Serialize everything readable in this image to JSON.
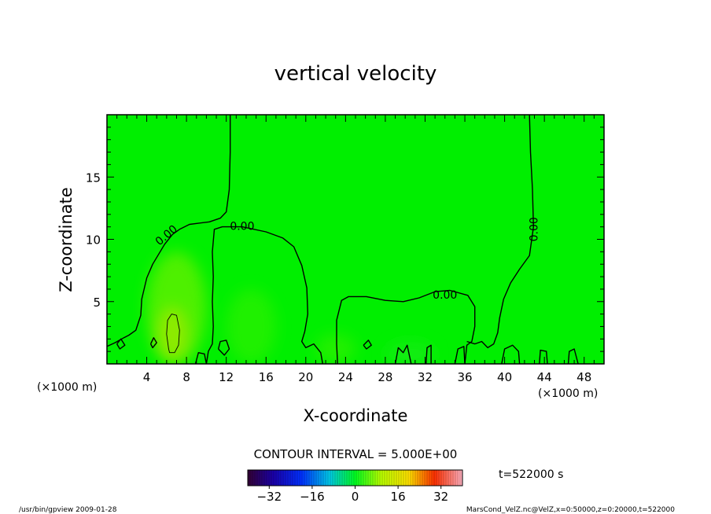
{
  "chart_data": {
    "type": "heatmap",
    "title": "vertical velocity",
    "xlabel": "X-coordinate",
    "ylabel": "Z-coordinate",
    "x_unit": "(×1000 m)",
    "y_unit": "(×1000 m)",
    "xlim": [
      0,
      50
    ],
    "ylim": [
      0,
      20
    ],
    "x_ticks": [
      4,
      8,
      12,
      16,
      20,
      24,
      28,
      32,
      36,
      40,
      44,
      48
    ],
    "y_ticks": [
      5,
      10,
      15
    ],
    "x_tick_labels": [
      "4",
      "8",
      "12",
      "16",
      "20",
      "24",
      "28",
      "32",
      "36",
      "40",
      "44",
      "48"
    ],
    "y_tick_labels": [
      "5",
      "10",
      "15"
    ],
    "contour_interval_text": "CONTOUR INTERVAL = 5.000E+00",
    "contour_label": "0.00",
    "colorbar": {
      "min": -40,
      "max": 40,
      "ticks": [
        -32,
        -16,
        0,
        16,
        32
      ],
      "tick_labels": [
        "−32",
        "−16",
        "0",
        "16",
        "32"
      ]
    },
    "time_text": "t=522000 s",
    "footer_left": "/usr/bin/gpview   2009-01-28",
    "footer_right": "MarsCond_VelZ.nc@VelZ,x=0:50000,z=0:20000,t=522000",
    "field_color": "#00ef00",
    "contours": [
      {
        "value": 0,
        "points": [
          [
            12.4,
            20
          ],
          [
            12.4,
            17
          ],
          [
            12.3,
            14
          ],
          [
            12.0,
            12.2
          ],
          [
            11.4,
            11.7
          ],
          [
            10.3,
            11.4
          ],
          [
            8.3,
            11.2
          ],
          [
            7.3,
            10.8
          ],
          [
            6.6,
            10.4
          ],
          [
            5.8,
            9.6
          ],
          [
            4.6,
            8.0
          ],
          [
            4.0,
            6.9
          ],
          [
            3.5,
            5.2
          ],
          [
            3.4,
            3.9
          ],
          [
            2.9,
            2.7
          ],
          [
            2.2,
            2.3
          ],
          [
            1.7,
            2.1
          ],
          [
            0.8,
            1.7
          ],
          [
            0,
            1.4
          ]
        ]
      },
      {
        "value": 0,
        "points": [
          [
            10.0,
            0
          ],
          [
            10.2,
            1.0
          ],
          [
            10.6,
            1.6
          ],
          [
            10.7,
            3.0
          ],
          [
            10.6,
            5.0
          ],
          [
            10.7,
            7.0
          ],
          [
            10.6,
            9.0
          ],
          [
            10.8,
            10.8
          ],
          [
            11.6,
            11.0
          ],
          [
            13.6,
            11.0
          ],
          [
            16.0,
            10.6
          ],
          [
            17.7,
            10.1
          ],
          [
            18.8,
            9.4
          ],
          [
            19.6,
            7.9
          ],
          [
            20.1,
            6.1
          ],
          [
            20.2,
            4.0
          ],
          [
            19.9,
            2.6
          ],
          [
            19.6,
            1.8
          ],
          [
            20.0,
            1.3
          ],
          [
            20.8,
            1.6
          ],
          [
            21.5,
            0.9
          ],
          [
            21.7,
            0
          ]
        ]
      },
      {
        "value": 0,
        "points": [
          [
            23.2,
            0
          ],
          [
            23.1,
            1.6
          ],
          [
            23.1,
            3.5
          ],
          [
            23.6,
            5.1
          ],
          [
            24.3,
            5.4
          ],
          [
            26.1,
            5.4
          ],
          [
            28.0,
            5.1
          ],
          [
            29.8,
            5.0
          ],
          [
            31.4,
            5.3
          ],
          [
            33.0,
            5.8
          ],
          [
            34.5,
            5.9
          ],
          [
            36.3,
            5.5
          ],
          [
            37.0,
            4.6
          ],
          [
            37.0,
            3.0
          ],
          [
            36.7,
            1.8
          ],
          [
            36.2,
            1.5
          ],
          [
            36.0,
            0
          ]
        ]
      },
      {
        "value": 0,
        "points": [
          [
            42.5,
            20
          ],
          [
            42.6,
            17
          ],
          [
            42.8,
            14
          ],
          [
            42.9,
            11
          ],
          [
            42.5,
            8.7
          ],
          [
            41.5,
            7.6
          ],
          [
            40.6,
            6.5
          ],
          [
            39.9,
            5.2
          ],
          [
            39.5,
            3.7
          ],
          [
            39.3,
            2.5
          ],
          [
            38.9,
            1.6
          ],
          [
            38.3,
            1.3
          ],
          [
            37.7,
            1.8
          ],
          [
            37.0,
            1.6
          ],
          [
            36.2,
            1.8
          ]
        ]
      },
      {
        "value": 5,
        "points": [
          [
            6.2,
            1.2
          ],
          [
            6.0,
            2.4
          ],
          [
            6.1,
            3.5
          ],
          [
            6.5,
            4.0
          ],
          [
            7.0,
            3.9
          ],
          [
            7.3,
            2.7
          ],
          [
            7.2,
            1.5
          ],
          [
            6.8,
            0.9
          ],
          [
            6.3,
            0.9
          ],
          [
            6.2,
            1.2
          ]
        ]
      },
      {
        "value": 0,
        "points": [
          [
            8.9,
            0
          ],
          [
            9.2,
            0.9
          ],
          [
            9.8,
            0.8
          ],
          [
            10.0,
            0
          ]
        ]
      },
      {
        "value": 0,
        "points": [
          [
            11.2,
            1.2
          ],
          [
            11.4,
            1.8
          ],
          [
            12.0,
            1.9
          ],
          [
            12.3,
            1.2
          ],
          [
            11.8,
            0.7
          ],
          [
            11.2,
            1.2
          ]
        ]
      },
      {
        "value": 0,
        "points": [
          [
            25.8,
            1.5
          ],
          [
            26.3,
            1.9
          ],
          [
            26.6,
            1.5
          ],
          [
            26.1,
            1.2
          ],
          [
            25.8,
            1.5
          ]
        ]
      },
      {
        "value": 0,
        "points": [
          [
            29.0,
            0
          ],
          [
            29.3,
            1.3
          ],
          [
            29.8,
            0.9
          ],
          [
            30.2,
            1.5
          ],
          [
            30.6,
            0
          ]
        ]
      },
      {
        "value": 0,
        "points": [
          [
            32.1,
            0
          ],
          [
            32.2,
            1.3
          ],
          [
            32.6,
            1.5
          ],
          [
            32.6,
            0
          ]
        ]
      },
      {
        "value": 0,
        "points": [
          [
            35.0,
            0
          ],
          [
            35.3,
            1.2
          ],
          [
            35.9,
            1.4
          ],
          [
            36.0,
            0
          ]
        ]
      },
      {
        "value": 0,
        "points": [
          [
            39.7,
            0
          ],
          [
            40.0,
            1.2
          ],
          [
            40.8,
            1.5
          ],
          [
            41.4,
            1.0
          ],
          [
            41.5,
            0
          ]
        ]
      },
      {
        "value": 0,
        "points": [
          [
            43.5,
            0
          ],
          [
            43.6,
            1.1
          ],
          [
            44.2,
            1.0
          ],
          [
            44.3,
            0
          ]
        ]
      },
      {
        "value": 0,
        "points": [
          [
            46.4,
            0
          ],
          [
            46.5,
            1.0
          ],
          [
            47.0,
            1.2
          ],
          [
            47.4,
            0
          ]
        ]
      },
      {
        "value": 0,
        "points": [
          [
            4.4,
            1.6
          ],
          [
            4.7,
            2.1
          ],
          [
            5.0,
            1.7
          ],
          [
            4.6,
            1.3
          ],
          [
            4.4,
            1.6
          ]
        ]
      },
      {
        "value": 0,
        "points": [
          [
            1.0,
            1.6
          ],
          [
            1.4,
            2.0
          ],
          [
            1.8,
            1.5
          ],
          [
            1.3,
            1.2
          ],
          [
            1.0,
            1.6
          ]
        ]
      }
    ],
    "contour_labels_at": [
      {
        "x": 6.0,
        "y": 10.3,
        "angle": -40
      },
      {
        "x": 13.6,
        "y": 11.0,
        "angle": 0
      },
      {
        "x": 34.0,
        "y": 5.5,
        "angle": 0
      },
      {
        "x": 43.0,
        "y": 10.8,
        "angle": -90
      }
    ],
    "warm_spots": [
      {
        "x": 7.0,
        "y": 4.5,
        "rx": 3.0,
        "ry": 4.5,
        "color": "#8ef000",
        "opacity": 0.55
      },
      {
        "x": 6.6,
        "y": 2.4,
        "rx": 1.6,
        "ry": 2.2,
        "color": "#a8e800",
        "opacity": 0.7
      },
      {
        "x": 14.5,
        "y": 3.0,
        "rx": 2.5,
        "ry": 3.0,
        "color": "#5cf000",
        "opacity": 0.35
      },
      {
        "x": 23.0,
        "y": 1.2,
        "rx": 2.0,
        "ry": 1.2,
        "color": "#60f000",
        "opacity": 0.35
      },
      {
        "x": 30.5,
        "y": 0.8,
        "rx": 2.5,
        "ry": 1.0,
        "color": "#30e830",
        "opacity": 0.35
      }
    ]
  }
}
